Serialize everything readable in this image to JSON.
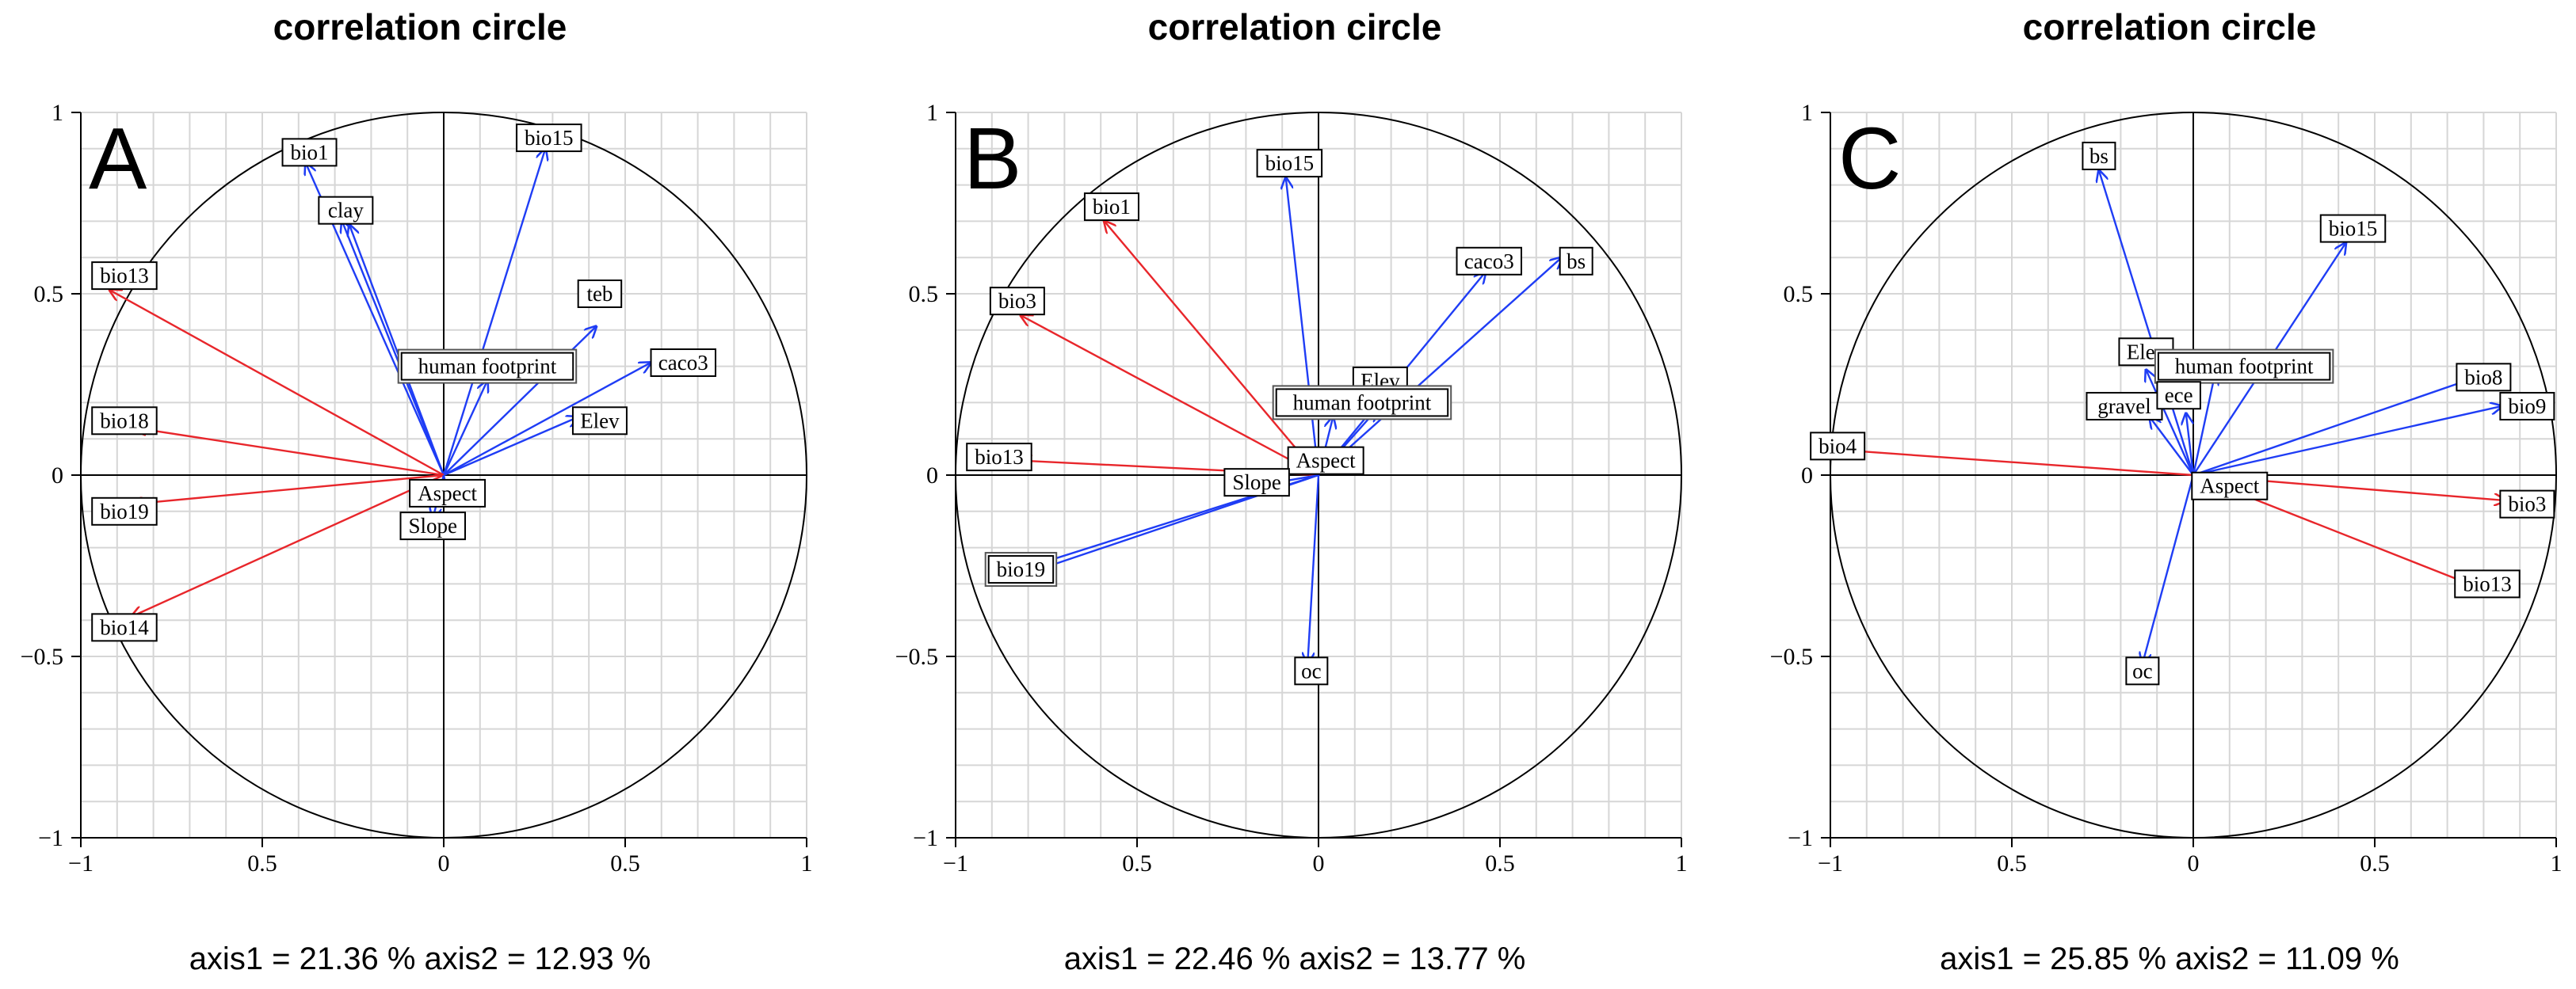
{
  "chart_data": [
    {
      "panel": "A",
      "type": "scatter",
      "subtype": "correlation-circle",
      "title": "correlation circle",
      "xlim": [
        -1,
        1
      ],
      "ylim": [
        -1,
        1
      ],
      "x_ticks": [
        "−1",
        "0.5",
        "0",
        "0.5",
        "1"
      ],
      "y_ticks": [
        "1",
        "0.5",
        "0",
        "−0.5",
        "−1"
      ],
      "grid": true,
      "axis_caption": "axis1 =  21.36 % axis2 =  12.93 %",
      "vectors": [
        {
          "label": "bio1",
          "x": -0.38,
          "y": 0.86,
          "color": "blue",
          "lx": -0.37,
          "ly": 0.89
        },
        {
          "label": "clay",
          "x": -0.28,
          "y": 0.7,
          "color": "blue",
          "lx": -0.27,
          "ly": 0.73
        },
        {
          "label": "clay",
          "x": -0.26,
          "y": 0.69,
          "color": "blue"
        },
        {
          "label": "bio15",
          "x": 0.28,
          "y": 0.9,
          "color": "blue",
          "lx": 0.29,
          "ly": 0.93
        },
        {
          "label": "teb",
          "x": 0.42,
          "y": 0.41,
          "color": "blue",
          "lx": 0.43,
          "ly": 0.5
        },
        {
          "label": "human footprint",
          "x": 0.12,
          "y": 0.26,
          "color": "blue",
          "lx": 0.12,
          "ly": 0.3,
          "boxed": "double"
        },
        {
          "label": "caco3",
          "x": 0.57,
          "y": 0.31,
          "color": "blue",
          "lx": 0.66,
          "ly": 0.31
        },
        {
          "label": "Elev",
          "x": 0.37,
          "y": 0.16,
          "color": "blue",
          "lx": 0.43,
          "ly": 0.15
        },
        {
          "label": "bio13",
          "x": -0.92,
          "y": 0.51,
          "color": "red",
          "lx": -0.88,
          "ly": 0.55
        },
        {
          "label": "bio18",
          "x": -0.85,
          "y": 0.13,
          "color": "red",
          "lx": -0.88,
          "ly": 0.15
        },
        {
          "label": "bio19",
          "x": -0.86,
          "y": -0.08,
          "color": "red",
          "lx": -0.88,
          "ly": -0.1
        },
        {
          "label": "bio14",
          "x": -0.86,
          "y": -0.39,
          "color": "red",
          "lx": -0.88,
          "ly": -0.42
        },
        {
          "label": "Aspect",
          "x": 0.01,
          "y": -0.05,
          "color": "blue",
          "lx": 0.01,
          "ly": -0.05
        },
        {
          "label": "Slope",
          "x": -0.03,
          "y": -0.12,
          "color": "blue",
          "lx": -0.03,
          "ly": -0.14
        }
      ]
    },
    {
      "panel": "B",
      "type": "scatter",
      "subtype": "correlation-circle",
      "title": "correlation circle",
      "xlim": [
        -1,
        1
      ],
      "ylim": [
        -1,
        1
      ],
      "x_ticks": [
        "−1",
        "0.5",
        "0",
        "0.5",
        "1"
      ],
      "y_ticks": [
        "1",
        "0.5",
        "0",
        "−0.5",
        "−1"
      ],
      "grid": true,
      "axis_caption": "axis1 =  22.46 % axis2 =  13.77 %",
      "vectors": [
        {
          "label": "bio15",
          "x": -0.09,
          "y": 0.82,
          "color": "blue",
          "lx": -0.08,
          "ly": 0.86
        },
        {
          "label": "bio1",
          "x": -0.59,
          "y": 0.7,
          "color": "red",
          "lx": -0.57,
          "ly": 0.74
        },
        {
          "label": "bio3",
          "x": -0.82,
          "y": 0.44,
          "color": "red",
          "lx": -0.83,
          "ly": 0.48
        },
        {
          "label": "bio13",
          "x": -0.82,
          "y": 0.04,
          "color": "red",
          "lx": -0.88,
          "ly": 0.05
        },
        {
          "label": "caco3",
          "x": 0.46,
          "y": 0.56,
          "color": "blue",
          "lx": 0.47,
          "ly": 0.59
        },
        {
          "label": "bs",
          "x": 0.67,
          "y": 0.6,
          "color": "blue",
          "lx": 0.71,
          "ly": 0.59
        },
        {
          "label": "Elev",
          "x": 0.16,
          "y": 0.18,
          "color": "blue",
          "lx": 0.17,
          "ly": 0.26
        },
        {
          "label": "human footprint",
          "x": 0.04,
          "y": 0.16,
          "color": "blue",
          "lx": 0.12,
          "ly": 0.2,
          "boxed": "double"
        },
        {
          "label": "Aspect",
          "x": 0.06,
          "y": 0.06,
          "color": "blue",
          "lx": 0.02,
          "ly": 0.04
        },
        {
          "label": "Slope",
          "x": -0.17,
          "y": -0.03,
          "color": "blue",
          "lx": -0.17,
          "ly": -0.02
        },
        {
          "label": "bio19",
          "x": -0.82,
          "y": -0.26,
          "color": "blue",
          "lx": -0.82,
          "ly": -0.26,
          "boxed": "double"
        },
        {
          "label": "bio19",
          "x": -0.8,
          "y": -0.27,
          "color": "blue"
        },
        {
          "label": "oc",
          "x": -0.03,
          "y": -0.52,
          "color": "blue",
          "lx": -0.02,
          "ly": -0.54
        }
      ]
    },
    {
      "panel": "C",
      "type": "scatter",
      "subtype": "correlation-circle",
      "title": "correlation circle",
      "xlim": [
        -1,
        1
      ],
      "ylim": [
        -1,
        1
      ],
      "x_ticks": [
        "−1",
        "0.5",
        "0",
        "0.5",
        "1"
      ],
      "y_ticks": [
        "1",
        "0.5",
        "0",
        "−0.5",
        "−1"
      ],
      "grid": true,
      "axis_caption": "axis1 =  25.85 % axis2 =  11.09 %",
      "vectors": [
        {
          "label": "bs",
          "x": -0.26,
          "y": 0.84,
          "color": "blue",
          "lx": -0.26,
          "ly": 0.88
        },
        {
          "label": "bio15",
          "x": 0.42,
          "y": 0.64,
          "color": "blue",
          "lx": 0.44,
          "ly": 0.68
        },
        {
          "label": "Elev",
          "x": -0.13,
          "y": 0.29,
          "color": "blue",
          "lx": -0.13,
          "ly": 0.34
        },
        {
          "label": "human footprint",
          "x": 0.06,
          "y": 0.28,
          "color": "blue",
          "lx": 0.14,
          "ly": 0.3,
          "boxed": "double"
        },
        {
          "label": "gravel",
          "x": -0.12,
          "y": 0.16,
          "color": "blue",
          "lx": -0.19,
          "ly": 0.19
        },
        {
          "label": "ece",
          "x": -0.02,
          "y": 0.17,
          "color": "blue",
          "lx": -0.04,
          "ly": 0.22
        },
        {
          "label": "bio8",
          "x": 0.78,
          "y": 0.27,
          "color": "blue",
          "lx": 0.8,
          "ly": 0.27
        },
        {
          "label": "bio9",
          "x": 0.85,
          "y": 0.19,
          "color": "blue",
          "lx": 0.92,
          "ly": 0.19
        },
        {
          "label": "bio4",
          "x": -0.98,
          "y": 0.07,
          "color": "red",
          "lx": -0.98,
          "ly": 0.08
        },
        {
          "label": "Aspect",
          "x": 0.04,
          "y": -0.02,
          "color": "red",
          "lx": 0.1,
          "ly": -0.03
        },
        {
          "label": "bio3",
          "x": 0.86,
          "y": -0.07,
          "color": "red",
          "lx": 0.92,
          "ly": -0.08
        },
        {
          "label": "bio13",
          "x": 0.76,
          "y": -0.3,
          "color": "red",
          "lx": 0.81,
          "ly": -0.3
        },
        {
          "label": "oc",
          "x": -0.14,
          "y": -0.52,
          "color": "blue",
          "lx": -0.14,
          "ly": -0.54
        }
      ]
    }
  ],
  "panels": [
    {
      "letter": "A"
    },
    {
      "letter": "B"
    },
    {
      "letter": "C"
    }
  ],
  "colors": {
    "blue": "#1f3df5",
    "red": "#e8262b",
    "axis": "#000000",
    "grid": "#d6d6d6",
    "label_box": "#000000"
  }
}
